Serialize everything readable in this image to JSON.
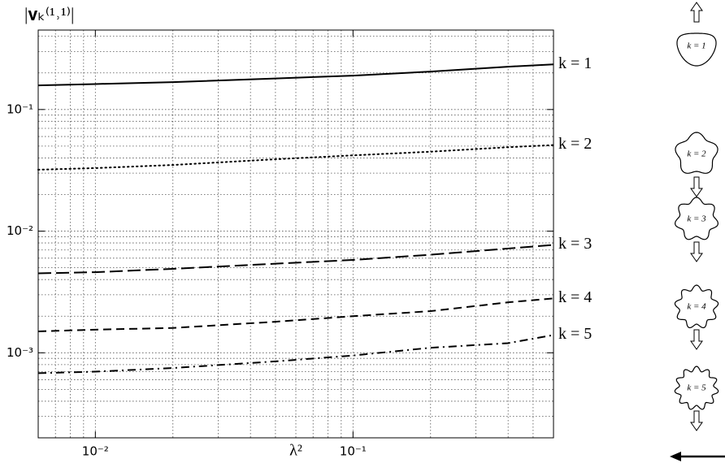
{
  "chart_data": {
    "type": "line",
    "x_label": "λ²",
    "y_label": "|𝐯ₖ⁽¹˒¹⁾|",
    "log_x": true,
    "log_y": true,
    "grid": true,
    "xlim": [
      0.006,
      0.6
    ],
    "ylim": [
      0.0002,
      0.45
    ],
    "xticks": [
      {
        "value": 0.01,
        "label": "10⁻²"
      },
      {
        "value": 0.1,
        "label": "10⁻¹"
      }
    ],
    "yticks": [
      {
        "value": 0.001,
        "label": "10⁻³"
      },
      {
        "value": 0.01,
        "label": "10⁻²"
      },
      {
        "value": 0.1,
        "label": "10⁻¹"
      }
    ],
    "x_minor_ticks": [
      0.006,
      0.007,
      0.008,
      0.009,
      0.02,
      0.03,
      0.04,
      0.05,
      0.06,
      0.07,
      0.08,
      0.09,
      0.2,
      0.3,
      0.4,
      0.5,
      0.6
    ],
    "y_minor_ticks": [
      0.0002,
      0.0003,
      0.0004,
      0.0005,
      0.0006,
      0.0007,
      0.0008,
      0.0009,
      0.002,
      0.003,
      0.004,
      0.005,
      0.006,
      0.007,
      0.008,
      0.009,
      0.02,
      0.03,
      0.04,
      0.05,
      0.06,
      0.07,
      0.08,
      0.09,
      0.2,
      0.3,
      0.4
    ],
    "x": [
      0.006,
      0.01,
      0.02,
      0.05,
      0.1,
      0.2,
      0.4,
      0.6
    ],
    "series": [
      {
        "name": "k = 1",
        "color": "#000000",
        "style": "solid",
        "values": [
          0.158,
          0.162,
          0.168,
          0.18,
          0.19,
          0.205,
          0.225,
          0.235
        ]
      },
      {
        "name": "k = 2",
        "color": "#000000",
        "style": "dotted",
        "values": [
          0.032,
          0.033,
          0.035,
          0.039,
          0.042,
          0.045,
          0.049,
          0.051
        ]
      },
      {
        "name": "k = 3",
        "color": "#000000",
        "style": "longdash",
        "values": [
          0.0045,
          0.0046,
          0.0049,
          0.0054,
          0.0058,
          0.0064,
          0.0072,
          0.0077
        ]
      },
      {
        "name": "k = 4",
        "color": "#000000",
        "style": "dashed",
        "values": [
          0.0015,
          0.00155,
          0.0016,
          0.0018,
          0.002,
          0.0022,
          0.0026,
          0.0028
        ]
      },
      {
        "name": "k = 5",
        "color": "#000000",
        "style": "dashdot",
        "values": [
          0.00068,
          0.0007,
          0.00075,
          0.00085,
          0.00095,
          0.0011,
          0.0012,
          0.0014
        ]
      }
    ]
  },
  "shapes": [
    {
      "label": "k = 1"
    },
    {
      "label": "k = 2"
    },
    {
      "label": "k = 3"
    },
    {
      "label": "k = 4"
    },
    {
      "label": "k = 5"
    }
  ]
}
